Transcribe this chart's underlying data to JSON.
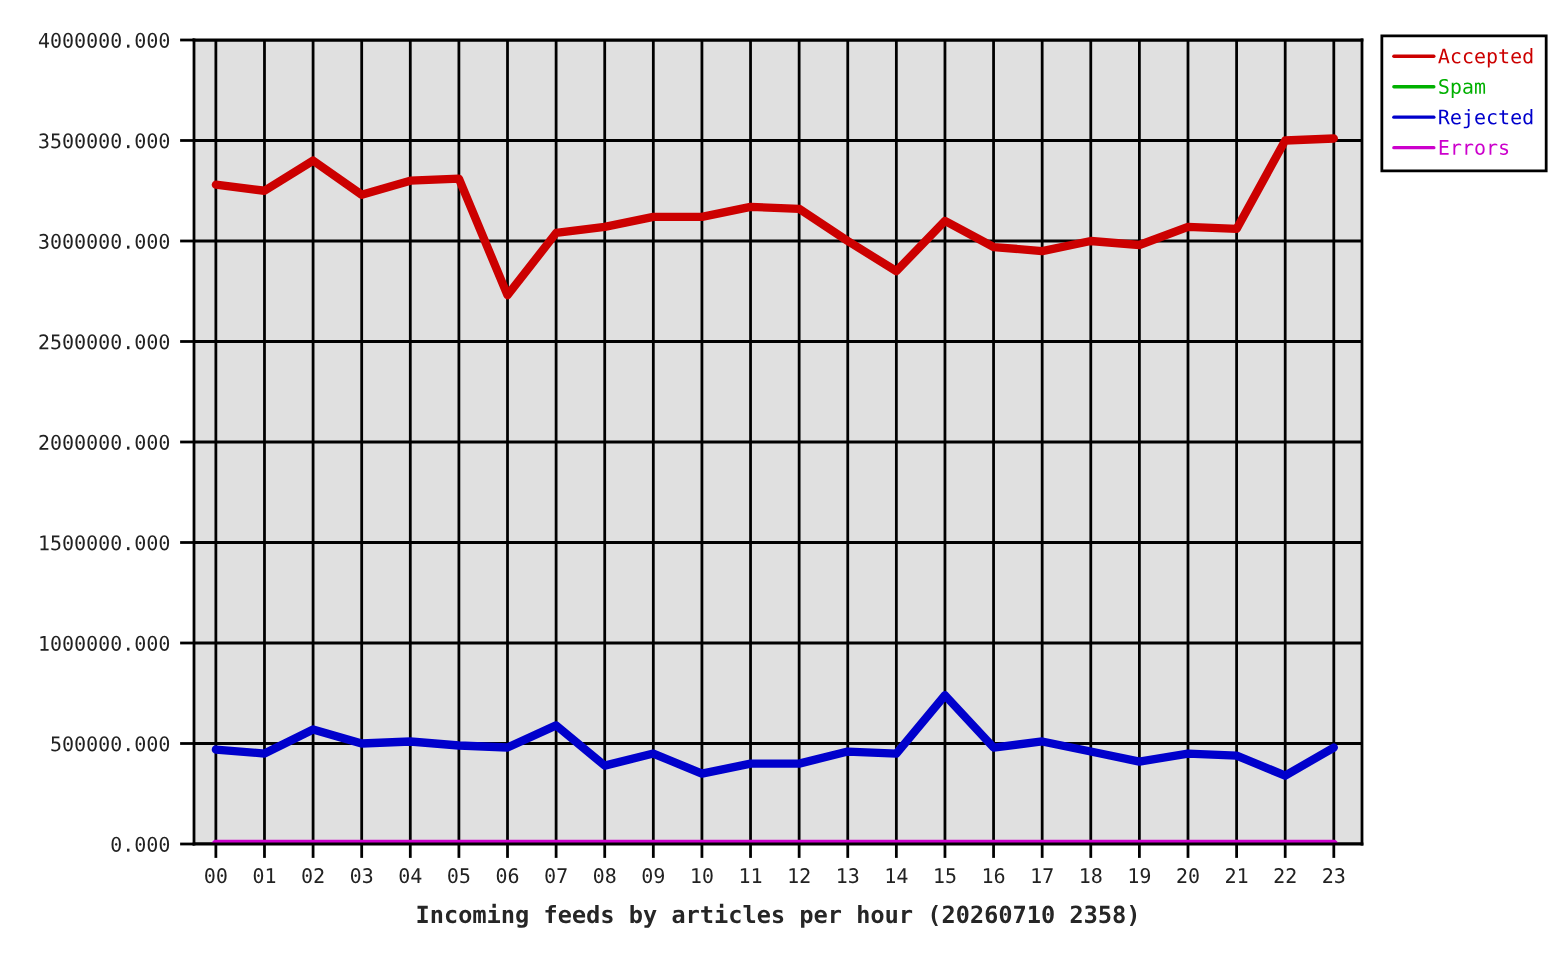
{
  "chart_data": {
    "type": "line",
    "xlabel": "Incoming feeds by articles per hour (20260710 2358)",
    "categories": [
      "00",
      "01",
      "02",
      "03",
      "04",
      "05",
      "06",
      "07",
      "08",
      "09",
      "10",
      "11",
      "12",
      "13",
      "14",
      "15",
      "16",
      "17",
      "18",
      "19",
      "20",
      "21",
      "22",
      "23"
    ],
    "series": [
      {
        "name": "Accepted",
        "color": "#cc0000",
        "values": [
          3280000,
          3250000,
          3400000,
          3230000,
          3300000,
          3310000,
          2730000,
          3040000,
          3070000,
          3120000,
          3120000,
          3170000,
          3160000,
          3000000,
          2850000,
          3100000,
          2970000,
          2950000,
          3000000,
          2980000,
          3070000,
          3060000,
          3500000,
          3510000
        ]
      },
      {
        "name": "Spam",
        "color": "#00b000",
        "values": [
          null,
          null,
          null,
          null,
          null,
          null,
          null,
          null,
          null,
          null,
          null,
          null,
          null,
          null,
          null,
          null,
          null,
          null,
          null,
          null,
          null,
          null,
          null,
          null
        ]
      },
      {
        "name": "Rejected",
        "color": "#0000cc",
        "values": [
          470000,
          450000,
          570000,
          500000,
          510000,
          490000,
          480000,
          590000,
          390000,
          450000,
          350000,
          400000,
          400000,
          460000,
          450000,
          740000,
          480000,
          510000,
          460000,
          410000,
          450000,
          440000,
          340000,
          480000
        ]
      },
      {
        "name": "Errors",
        "color": "#cc00cc",
        "values": [
          0,
          0,
          0,
          0,
          0,
          0,
          0,
          0,
          0,
          0,
          0,
          0,
          0,
          0,
          0,
          0,
          0,
          0,
          0,
          0,
          0,
          0,
          0,
          0
        ]
      }
    ],
    "ylim": [
      0,
      4000000
    ],
    "yticks": [
      {
        "value": 0,
        "label": "0.000"
      },
      {
        "value": 500000,
        "label": "500000.000"
      },
      {
        "value": 1000000,
        "label": "1000000.000"
      },
      {
        "value": 1500000,
        "label": "1500000.000"
      },
      {
        "value": 2000000,
        "label": "2000000.000"
      },
      {
        "value": 2500000,
        "label": "2500000.000"
      },
      {
        "value": 3000000,
        "label": "3000000.000"
      },
      {
        "value": 3500000,
        "label": "3500000.000"
      },
      {
        "value": 4000000,
        "label": "4000000.000"
      }
    ],
    "grid": true,
    "legend": "top right"
  }
}
